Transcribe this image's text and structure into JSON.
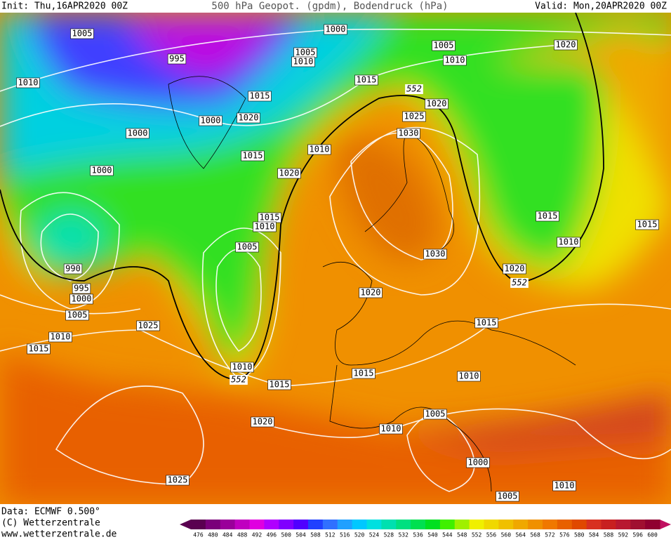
{
  "header": {
    "init": "Init: Thu,16APR2020 00Z",
    "title": "500 hPa Geopot. (gpdm), Bodendruck (hPa)",
    "valid": "Valid: Mon,20APR2020 00Z"
  },
  "isobar_labels": [
    1005,
    1000,
    995,
    1005,
    1010,
    1005,
    1010,
    1020,
    1010,
    1015,
    1015,
    1020,
    1000,
    1020,
    1025,
    1000,
    1030,
    1010,
    1015,
    1000,
    1020,
    1015,
    1010,
    1015,
    1015,
    1005,
    1010,
    1030,
    990,
    1020,
    995,
    1000,
    1020,
    1005,
    1025,
    1015,
    1010,
    1015,
    1010,
    1015,
    1015,
    1010,
    1005,
    1020,
    1010,
    1000,
    1025,
    1010,
    1005
  ],
  "height_labels": [
    552,
    552,
    552
  ],
  "footer": {
    "data": "Data: ECMWF  0.500°",
    "copyright": "(C) Wetterzentrale",
    "url": "www.wetterzentrale.de"
  },
  "color_scale": {
    "values": [
      476,
      480,
      484,
      488,
      492,
      496,
      500,
      504,
      508,
      512,
      516,
      520,
      524,
      528,
      532,
      536,
      540,
      544,
      548,
      552,
      556,
      560,
      564,
      568,
      572,
      576,
      580,
      584,
      588,
      592,
      596,
      600
    ],
    "colors": [
      "#5a0050",
      "#7a007a",
      "#9a009a",
      "#c000c0",
      "#e000e0",
      "#b000ff",
      "#8000ff",
      "#5000ff",
      "#2040ff",
      "#3070ff",
      "#20a0ff",
      "#00c8ff",
      "#00e0e0",
      "#00e0b0",
      "#00e080",
      "#00e050",
      "#00e020",
      "#40f000",
      "#a0f000",
      "#f0f000",
      "#f0d800",
      "#f0c000",
      "#f0a800",
      "#f09000",
      "#f07800",
      "#e86000",
      "#e04800",
      "#d83020",
      "#c82020",
      "#b81830",
      "#a01030",
      "#900030"
    ]
  }
}
